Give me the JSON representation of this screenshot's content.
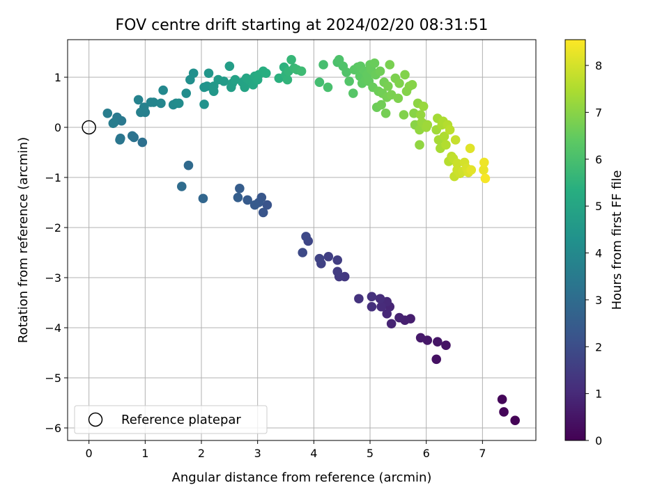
{
  "chart_data": {
    "type": "scatter",
    "title": "FOV centre drift starting at 2024/02/20 08:31:51",
    "xlabel": "Angular distance from reference (arcmin)",
    "ylabel": "Rotation from reference (arcmin)",
    "xlim": [
      -0.38,
      7.95
    ],
    "ylim": [
      -6.25,
      1.75
    ],
    "xticks": [
      0,
      1,
      2,
      3,
      4,
      5,
      6,
      7
    ],
    "yticks": [
      -6,
      -5,
      -4,
      -3,
      -2,
      -1,
      0,
      1
    ],
    "grid": true,
    "colormap": "viridis",
    "colorbar": {
      "label": "Hours from first FF file",
      "min": 0,
      "max": 8.55,
      "ticks": [
        0,
        1,
        2,
        3,
        4,
        5,
        6,
        7,
        8
      ]
    },
    "legend": {
      "placement": "lower-left",
      "entries": [
        "Reference platepar"
      ]
    },
    "reference_point": {
      "name": "Reference platepar",
      "x": 0,
      "y": 0
    },
    "points": [
      {
        "x": 7.58,
        "y": -5.85,
        "t": 0.05
      },
      {
        "x": 7.38,
        "y": -5.68,
        "t": 0.1
      },
      {
        "x": 7.35,
        "y": -5.43,
        "t": 0.15
      },
      {
        "x": 6.18,
        "y": -4.63,
        "t": 0.4
      },
      {
        "x": 6.35,
        "y": -4.35,
        "t": 0.45
      },
      {
        "x": 6.2,
        "y": -4.28,
        "t": 0.5
      },
      {
        "x": 6.02,
        "y": -4.25,
        "t": 0.55
      },
      {
        "x": 5.9,
        "y": -4.2,
        "t": 0.6
      },
      {
        "x": 5.72,
        "y": -3.82,
        "t": 0.7
      },
      {
        "x": 5.62,
        "y": -3.85,
        "t": 0.75
      },
      {
        "x": 5.52,
        "y": -3.8,
        "t": 0.8
      },
      {
        "x": 5.38,
        "y": -3.92,
        "t": 0.85
      },
      {
        "x": 5.35,
        "y": -3.58,
        "t": 0.9
      },
      {
        "x": 5.3,
        "y": -3.72,
        "t": 0.95
      },
      {
        "x": 5.3,
        "y": -3.48,
        "t": 1.0
      },
      {
        "x": 5.2,
        "y": -3.58,
        "t": 1.05
      },
      {
        "x": 5.18,
        "y": -3.42,
        "t": 1.1
      },
      {
        "x": 5.03,
        "y": -3.58,
        "t": 1.15
      },
      {
        "x": 5.03,
        "y": -3.38,
        "t": 1.2
      },
      {
        "x": 4.8,
        "y": -3.42,
        "t": 1.25
      },
      {
        "x": 4.55,
        "y": -2.98,
        "t": 1.4
      },
      {
        "x": 4.45,
        "y": -2.98,
        "t": 1.45
      },
      {
        "x": 4.42,
        "y": -2.88,
        "t": 1.5
      },
      {
        "x": 4.42,
        "y": -2.65,
        "t": 1.55
      },
      {
        "x": 4.26,
        "y": -2.58,
        "t": 1.6
      },
      {
        "x": 4.13,
        "y": -2.72,
        "t": 1.65
      },
      {
        "x": 4.1,
        "y": -2.62,
        "t": 1.7
      },
      {
        "x": 3.9,
        "y": -2.27,
        "t": 1.8
      },
      {
        "x": 3.86,
        "y": -2.18,
        "t": 1.85
      },
      {
        "x": 3.8,
        "y": -2.5,
        "t": 1.9
      },
      {
        "x": 3.17,
        "y": -1.55,
        "t": 2.2
      },
      {
        "x": 3.1,
        "y": -1.7,
        "t": 2.25
      },
      {
        "x": 3.07,
        "y": -1.4,
        "t": 2.3
      },
      {
        "x": 3.02,
        "y": -1.5,
        "t": 2.35
      },
      {
        "x": 2.95,
        "y": -1.55,
        "t": 2.4
      },
      {
        "x": 2.82,
        "y": -1.45,
        "t": 2.45
      },
      {
        "x": 2.68,
        "y": -1.22,
        "t": 2.5
      },
      {
        "x": 2.65,
        "y": -1.4,
        "t": 2.55
      },
      {
        "x": 2.03,
        "y": -1.42,
        "t": 2.8
      },
      {
        "x": 1.77,
        "y": -0.76,
        "t": 2.95
      },
      {
        "x": 1.65,
        "y": -1.18,
        "t": 3.0
      },
      {
        "x": 0.95,
        "y": -0.3,
        "t": 3.15
      },
      {
        "x": 0.8,
        "y": -0.2,
        "t": 3.2
      },
      {
        "x": 0.77,
        "y": -0.17,
        "t": 3.25
      },
      {
        "x": 0.56,
        "y": -0.22,
        "t": 3.3
      },
      {
        "x": 0.55,
        "y": -0.25,
        "t": 3.35
      },
      {
        "x": 0.58,
        "y": 0.13,
        "t": 3.4
      },
      {
        "x": 0.5,
        "y": 0.2,
        "t": 3.45
      },
      {
        "x": 0.45,
        "y": 0.1,
        "t": 3.5
      },
      {
        "x": 0.43,
        "y": 0.08,
        "t": 3.55
      },
      {
        "x": 0.33,
        "y": 0.28,
        "t": 3.6
      },
      {
        "x": 1.0,
        "y": 0.3,
        "t": 3.65
      },
      {
        "x": 0.92,
        "y": 0.3,
        "t": 3.7
      },
      {
        "x": 0.98,
        "y": 0.4,
        "t": 3.72
      },
      {
        "x": 0.88,
        "y": 0.55,
        "t": 3.75
      },
      {
        "x": 1.1,
        "y": 0.5,
        "t": 3.8
      },
      {
        "x": 1.15,
        "y": 0.5,
        "t": 3.85
      },
      {
        "x": 1.28,
        "y": 0.48,
        "t": 3.9
      },
      {
        "x": 1.32,
        "y": 0.74,
        "t": 3.95
      },
      {
        "x": 1.5,
        "y": 0.45,
        "t": 4.0
      },
      {
        "x": 1.55,
        "y": 0.48,
        "t": 4.05
      },
      {
        "x": 1.6,
        "y": 0.48,
        "t": 4.1
      },
      {
        "x": 1.73,
        "y": 0.68,
        "t": 4.15
      },
      {
        "x": 1.8,
        "y": 0.95,
        "t": 4.2
      },
      {
        "x": 1.86,
        "y": 1.08,
        "t": 4.25
      },
      {
        "x": 2.05,
        "y": 0.46,
        "t": 4.3
      },
      {
        "x": 2.05,
        "y": 0.8,
        "t": 4.35
      },
      {
        "x": 2.1,
        "y": 0.82,
        "t": 4.4
      },
      {
        "x": 2.13,
        "y": 1.08,
        "t": 4.45
      },
      {
        "x": 2.22,
        "y": 0.72,
        "t": 4.5
      },
      {
        "x": 2.22,
        "y": 0.82,
        "t": 4.55
      },
      {
        "x": 2.3,
        "y": 0.95,
        "t": 4.6
      },
      {
        "x": 2.4,
        "y": 0.92,
        "t": 4.65
      },
      {
        "x": 2.5,
        "y": 1.22,
        "t": 4.7
      },
      {
        "x": 2.53,
        "y": 0.8,
        "t": 4.75
      },
      {
        "x": 2.55,
        "y": 0.88,
        "t": 4.8
      },
      {
        "x": 2.6,
        "y": 0.95,
        "t": 4.85
      },
      {
        "x": 2.73,
        "y": 0.9,
        "t": 4.9
      },
      {
        "x": 2.77,
        "y": 0.8,
        "t": 4.95
      },
      {
        "x": 2.8,
        "y": 0.98,
        "t": 5.0
      },
      {
        "x": 2.85,
        "y": 0.95,
        "t": 5.05
      },
      {
        "x": 2.92,
        "y": 0.85,
        "t": 5.1
      },
      {
        "x": 2.95,
        "y": 1.02,
        "t": 5.15
      },
      {
        "x": 3.0,
        "y": 0.95,
        "t": 5.2
      },
      {
        "x": 3.02,
        "y": 1.05,
        "t": 5.25
      },
      {
        "x": 3.1,
        "y": 1.12,
        "t": 5.3
      },
      {
        "x": 3.15,
        "y": 1.08,
        "t": 5.35
      },
      {
        "x": 3.38,
        "y": 0.98,
        "t": 5.4
      },
      {
        "x": 3.47,
        "y": 1.2,
        "t": 5.45
      },
      {
        "x": 3.5,
        "y": 1.05,
        "t": 5.5
      },
      {
        "x": 3.53,
        "y": 0.95,
        "t": 5.55
      },
      {
        "x": 3.55,
        "y": 1.12,
        "t": 5.6
      },
      {
        "x": 3.6,
        "y": 1.35,
        "t": 5.65
      },
      {
        "x": 3.65,
        "y": 1.18,
        "t": 5.7
      },
      {
        "x": 3.7,
        "y": 1.15,
        "t": 5.75
      },
      {
        "x": 3.78,
        "y": 1.12,
        "t": 5.8
      },
      {
        "x": 4.1,
        "y": 0.9,
        "t": 5.9
      },
      {
        "x": 4.17,
        "y": 1.25,
        "t": 5.95
      },
      {
        "x": 4.25,
        "y": 0.8,
        "t": 6.0
      },
      {
        "x": 4.42,
        "y": 1.3,
        "t": 6.05
      },
      {
        "x": 4.45,
        "y": 1.35,
        "t": 6.1
      },
      {
        "x": 4.52,
        "y": 1.22,
        "t": 6.12
      },
      {
        "x": 4.58,
        "y": 1.1,
        "t": 6.15
      },
      {
        "x": 4.63,
        "y": 0.92,
        "t": 6.2
      },
      {
        "x": 4.7,
        "y": 0.68,
        "t": 6.25
      },
      {
        "x": 4.72,
        "y": 1.15,
        "t": 6.3
      },
      {
        "x": 4.78,
        "y": 1.2,
        "t": 6.33
      },
      {
        "x": 4.82,
        "y": 1.02,
        "t": 6.36
      },
      {
        "x": 4.83,
        "y": 1.22,
        "t": 6.38
      },
      {
        "x": 4.86,
        "y": 0.88,
        "t": 6.4
      },
      {
        "x": 4.9,
        "y": 1.12,
        "t": 6.42
      },
      {
        "x": 4.92,
        "y": 0.95,
        "t": 6.44
      },
      {
        "x": 4.95,
        "y": 1.05,
        "t": 6.46
      },
      {
        "x": 4.98,
        "y": 0.92,
        "t": 6.48
      },
      {
        "x": 5.0,
        "y": 1.25,
        "t": 6.5
      },
      {
        "x": 5.02,
        "y": 1.15,
        "t": 6.52
      },
      {
        "x": 5.05,
        "y": 0.8,
        "t": 6.54
      },
      {
        "x": 5.08,
        "y": 1.28,
        "t": 6.56
      },
      {
        "x": 5.1,
        "y": 1.05,
        "t": 6.58
      },
      {
        "x": 5.12,
        "y": 0.4,
        "t": 6.6
      },
      {
        "x": 5.15,
        "y": 0.72,
        "t": 6.62
      },
      {
        "x": 5.18,
        "y": 1.12,
        "t": 6.64
      },
      {
        "x": 5.2,
        "y": 0.45,
        "t": 6.66
      },
      {
        "x": 5.22,
        "y": 0.68,
        "t": 6.68
      },
      {
        "x": 5.25,
        "y": 0.9,
        "t": 6.7
      },
      {
        "x": 5.28,
        "y": 0.28,
        "t": 6.72
      },
      {
        "x": 5.3,
        "y": 0.6,
        "t": 6.74
      },
      {
        "x": 5.32,
        "y": 0.82,
        "t": 6.76
      },
      {
        "x": 5.35,
        "y": 1.25,
        "t": 6.78
      },
      {
        "x": 5.38,
        "y": 0.65,
        "t": 6.8
      },
      {
        "x": 5.45,
        "y": 0.98,
        "t": 6.82
      },
      {
        "x": 5.5,
        "y": 0.58,
        "t": 6.84
      },
      {
        "x": 5.52,
        "y": 0.88,
        "t": 6.86
      },
      {
        "x": 5.6,
        "y": 0.25,
        "t": 6.88
      },
      {
        "x": 5.62,
        "y": 1.05,
        "t": 6.9
      },
      {
        "x": 5.65,
        "y": 0.72,
        "t": 6.92
      },
      {
        "x": 5.7,
        "y": 0.82,
        "t": 6.94
      },
      {
        "x": 5.75,
        "y": 0.85,
        "t": 6.96
      },
      {
        "x": 5.78,
        "y": 0.28,
        "t": 6.98
      },
      {
        "x": 5.8,
        "y": 0.05,
        "t": 7.0
      },
      {
        "x": 5.85,
        "y": 0.48,
        "t": 7.05
      },
      {
        "x": 5.88,
        "y": -0.35,
        "t": 7.1
      },
      {
        "x": 5.88,
        "y": -0.05,
        "t": 7.12
      },
      {
        "x": 5.9,
        "y": 0.25,
        "t": 7.15
      },
      {
        "x": 5.92,
        "y": 0.1,
        "t": 7.18
      },
      {
        "x": 5.95,
        "y": 0.42,
        "t": 7.2
      },
      {
        "x": 6.0,
        "y": 0.0,
        "t": 7.25
      },
      {
        "x": 6.02,
        "y": 0.05,
        "t": 7.28
      },
      {
        "x": 6.18,
        "y": -0.05,
        "t": 7.3
      },
      {
        "x": 6.2,
        "y": 0.18,
        "t": 7.35
      },
      {
        "x": 6.22,
        "y": -0.25,
        "t": 7.38
      },
      {
        "x": 6.25,
        "y": -0.42,
        "t": 7.4
      },
      {
        "x": 6.28,
        "y": 0.05,
        "t": 7.45
      },
      {
        "x": 6.3,
        "y": 0.12,
        "t": 7.48
      },
      {
        "x": 6.32,
        "y": -0.18,
        "t": 7.5
      },
      {
        "x": 6.35,
        "y": -0.35,
        "t": 7.55
      },
      {
        "x": 6.38,
        "y": 0.05,
        "t": 7.58
      },
      {
        "x": 6.4,
        "y": -0.68,
        "t": 7.6
      },
      {
        "x": 6.42,
        "y": -0.05,
        "t": 7.65
      },
      {
        "x": 6.45,
        "y": -0.58,
        "t": 7.7
      },
      {
        "x": 6.48,
        "y": -0.62,
        "t": 7.75
      },
      {
        "x": 6.5,
        "y": -0.98,
        "t": 7.8
      },
      {
        "x": 6.52,
        "y": -0.25,
        "t": 7.82
      },
      {
        "x": 6.55,
        "y": -0.72,
        "t": 7.85
      },
      {
        "x": 6.55,
        "y": -0.85,
        "t": 7.88
      },
      {
        "x": 6.6,
        "y": -0.92,
        "t": 7.9
      },
      {
        "x": 6.65,
        "y": -0.88,
        "t": 7.95
      },
      {
        "x": 6.68,
        "y": -0.7,
        "t": 8.0
      },
      {
        "x": 6.72,
        "y": -0.82,
        "t": 8.05
      },
      {
        "x": 6.75,
        "y": -0.9,
        "t": 8.1
      },
      {
        "x": 6.78,
        "y": -0.42,
        "t": 8.15
      },
      {
        "x": 6.8,
        "y": -0.85,
        "t": 8.2
      },
      {
        "x": 7.02,
        "y": -0.85,
        "t": 8.3
      },
      {
        "x": 7.03,
        "y": -0.7,
        "t": 8.35
      },
      {
        "x": 7.05,
        "y": -1.02,
        "t": 8.45
      }
    ]
  }
}
